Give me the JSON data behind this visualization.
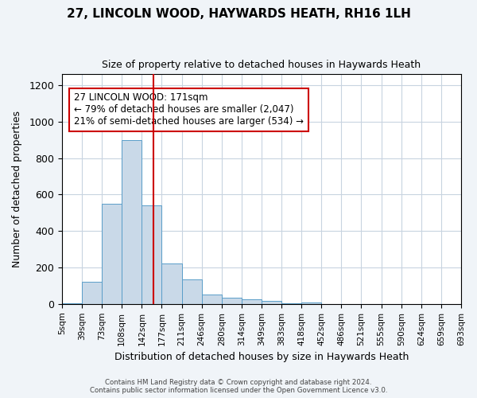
{
  "title": "27, LINCOLN WOOD, HAYWARDS HEATH, RH16 1LH",
  "subtitle": "Size of property relative to detached houses in Haywards Heath",
  "xlabel": "Distribution of detached houses by size in Haywards Heath",
  "ylabel": "Number of detached properties",
  "bin_labels": [
    "5sqm",
    "39sqm",
    "73sqm",
    "108sqm",
    "142sqm",
    "177sqm",
    "211sqm",
    "246sqm",
    "280sqm",
    "314sqm",
    "349sqm",
    "383sqm",
    "418sqm",
    "452sqm",
    "486sqm",
    "521sqm",
    "555sqm",
    "590sqm",
    "624sqm",
    "659sqm",
    "693sqm"
  ],
  "bar_heights": [
    5,
    120,
    548,
    900,
    540,
    220,
    135,
    50,
    35,
    25,
    15,
    5,
    10,
    0,
    0,
    0,
    0,
    0,
    0,
    0
  ],
  "bar_color": "#c9d9e8",
  "bar_edge_color": "#5a9ec9",
  "vline_x": 4.57,
  "vline_color": "#cc0000",
  "annotation_text": "27 LINCOLN WOOD: 171sqm\n← 79% of detached houses are smaller (2,047)\n21% of semi-detached houses are larger (534) →",
  "annotation_box_color": "white",
  "annotation_box_edge_color": "#cc0000",
  "ylim": [
    0,
    1260
  ],
  "yticks": [
    0,
    200,
    400,
    600,
    800,
    1000,
    1200
  ],
  "footer_line1": "Contains HM Land Registry data © Crown copyright and database right 2024.",
  "footer_line2": "Contains public sector information licensed under the Open Government Licence v3.0.",
  "background_color": "#f0f4f8",
  "plot_bg_color": "white",
  "grid_color": "#c8d4e0"
}
